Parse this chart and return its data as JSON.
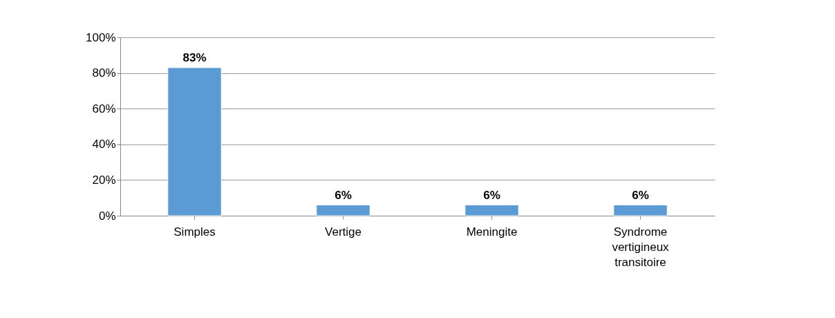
{
  "chart_data": {
    "type": "bar",
    "categories": [
      "Simples",
      "Vertige",
      "Meningite",
      "Syndrome vertigineux transitoire"
    ],
    "values": [
      83,
      6,
      6,
      6
    ],
    "value_labels": [
      "83%",
      "6%",
      "6%",
      "6%"
    ],
    "color": "#5b9bd5",
    "ylim": [
      0,
      100
    ],
    "yticks": [
      {
        "value": 0,
        "label": "0%"
      },
      {
        "value": 20,
        "label": "20%"
      },
      {
        "value": 40,
        "label": "40%"
      },
      {
        "value": 60,
        "label": "60%"
      },
      {
        "value": 80,
        "label": "80%"
      },
      {
        "value": 100,
        "label": "100%"
      }
    ],
    "grid": "y"
  }
}
